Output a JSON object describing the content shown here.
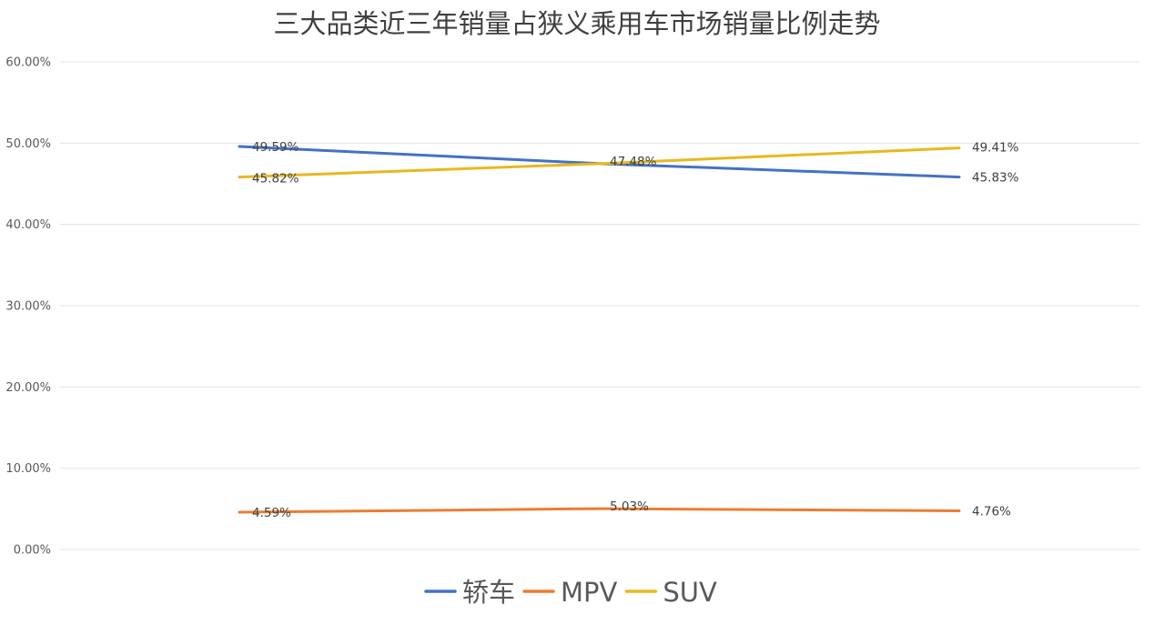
{
  "chart_data": {
    "type": "line",
    "title": "三大品类近三年销量占狭义乘用车市场销量比例走势",
    "xlabel": "",
    "ylabel": "",
    "categories": [
      "",
      "",
      ""
    ],
    "ylim": [
      0,
      60
    ],
    "y_ticks": [
      "0.00%",
      "10.00%",
      "20.00%",
      "30.00%",
      "40.00%",
      "50.00%",
      "60.00%"
    ],
    "y_tick_values": [
      0,
      10,
      20,
      30,
      40,
      50,
      60
    ],
    "grid": true,
    "legend_position": "bottom",
    "series": [
      {
        "name": "轿车",
        "color": "#4472C4",
        "values": [
          49.59,
          47.48,
          45.83
        ],
        "labels": [
          "49.59%",
          "47.48%",
          "45.83%"
        ]
      },
      {
        "name": "MPV",
        "color": "#ED7D31",
        "values": [
          4.59,
          5.03,
          4.76
        ],
        "labels": [
          "4.59%",
          "5.03%",
          "4.76%"
        ]
      },
      {
        "name": "SUV",
        "color": "#E8B820",
        "values": [
          45.82,
          47.48,
          49.41
        ],
        "labels": [
          "45.82%",
          "",
          "49.41%"
        ]
      }
    ]
  }
}
